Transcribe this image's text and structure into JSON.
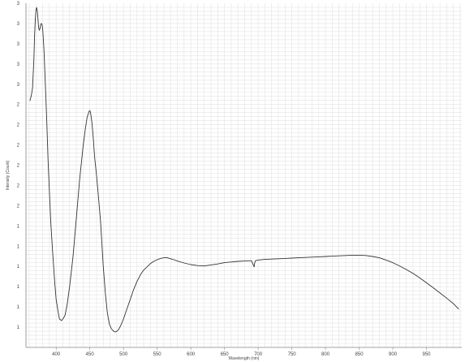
{
  "chart_data": {
    "type": "line",
    "xlabel": "Wavelength (nm)",
    "ylabel": "Intensity (Count)",
    "xlim": [
      360,
      1000
    ],
    "ylim": [
      0,
      1
    ],
    "grid": true,
    "x_tick_labels": [
      "400",
      "450",
      "500",
      "550",
      "600",
      "650",
      "700",
      "750",
      "800",
      "850",
      "900",
      "950"
    ],
    "y_tick_labels": [
      "1",
      "1",
      "1",
      "1",
      "1",
      "1",
      "2",
      "2",
      "2",
      "2",
      "2",
      "2",
      "3",
      "3",
      "3",
      "3",
      "3"
    ],
    "colors": {
      "line": "#333333",
      "grid": "#e3e3e3",
      "axis": "#888888"
    },
    "series": [
      {
        "x": [
          361,
          363,
          365,
          367,
          368,
          369,
          370,
          371,
          372,
          373,
          374,
          375,
          376,
          377,
          378,
          379,
          380,
          381,
          382,
          383,
          384,
          385,
          386,
          387,
          388,
          390,
          392,
          395,
          398,
          400,
          403,
          405,
          408,
          410,
          413,
          416,
          420,
          425,
          430,
          435,
          440,
          443,
          446,
          449,
          450,
          451,
          453,
          455,
          457,
          460,
          463,
          466,
          468,
          470,
          473,
          476,
          479,
          482,
          485,
          488,
          490,
          493,
          496,
          500,
          505,
          510,
          515,
          520,
          525,
          530,
          535,
          540,
          545,
          550,
          555,
          560,
          565,
          570,
          575,
          580,
          590,
          600,
          610,
          620,
          630,
          640,
          650,
          660,
          670,
          680,
          690,
          693,
          694,
          695,
          696,
          698,
          700,
          710,
          720,
          730,
          740,
          750,
          760,
          770,
          780,
          790,
          800,
          810,
          820,
          830,
          840,
          850,
          860,
          870,
          880,
          890,
          900,
          910,
          920,
          930,
          940,
          950,
          960,
          970,
          980,
          990,
          998
        ],
        "y": [
          0.71,
          0.725,
          0.75,
          0.84,
          0.91,
          0.96,
          0.988,
          0.997,
          0.986,
          0.96,
          0.935,
          0.927,
          0.932,
          0.944,
          0.948,
          0.945,
          0.93,
          0.9,
          0.86,
          0.81,
          0.76,
          0.71,
          0.65,
          0.59,
          0.53,
          0.43,
          0.34,
          0.24,
          0.15,
          0.1,
          0.06,
          0.04,
          0.035,
          0.04,
          0.05,
          0.08,
          0.14,
          0.23,
          0.35,
          0.47,
          0.57,
          0.62,
          0.66,
          0.678,
          0.68,
          0.675,
          0.645,
          0.6,
          0.54,
          0.48,
          0.41,
          0.34,
          0.27,
          0.2,
          0.12,
          0.06,
          0.025,
          0.01,
          0.003,
          0.0,
          0.002,
          0.008,
          0.02,
          0.04,
          0.07,
          0.1,
          0.13,
          0.155,
          0.175,
          0.19,
          0.2,
          0.21,
          0.217,
          0.222,
          0.226,
          0.228,
          0.228,
          0.225,
          0.222,
          0.218,
          0.212,
          0.207,
          0.204,
          0.203,
          0.206,
          0.209,
          0.213,
          0.215,
          0.217,
          0.218,
          0.219,
          0.205,
          0.2,
          0.213,
          0.219,
          0.22,
          0.221,
          0.223,
          0.224,
          0.225,
          0.226,
          0.227,
          0.228,
          0.229,
          0.23,
          0.231,
          0.232,
          0.233,
          0.234,
          0.235,
          0.236,
          0.236,
          0.235,
          0.232,
          0.228,
          0.221,
          0.213,
          0.203,
          0.192,
          0.18,
          0.166,
          0.151,
          0.136,
          0.12,
          0.104,
          0.087,
          0.07
        ]
      }
    ]
  }
}
